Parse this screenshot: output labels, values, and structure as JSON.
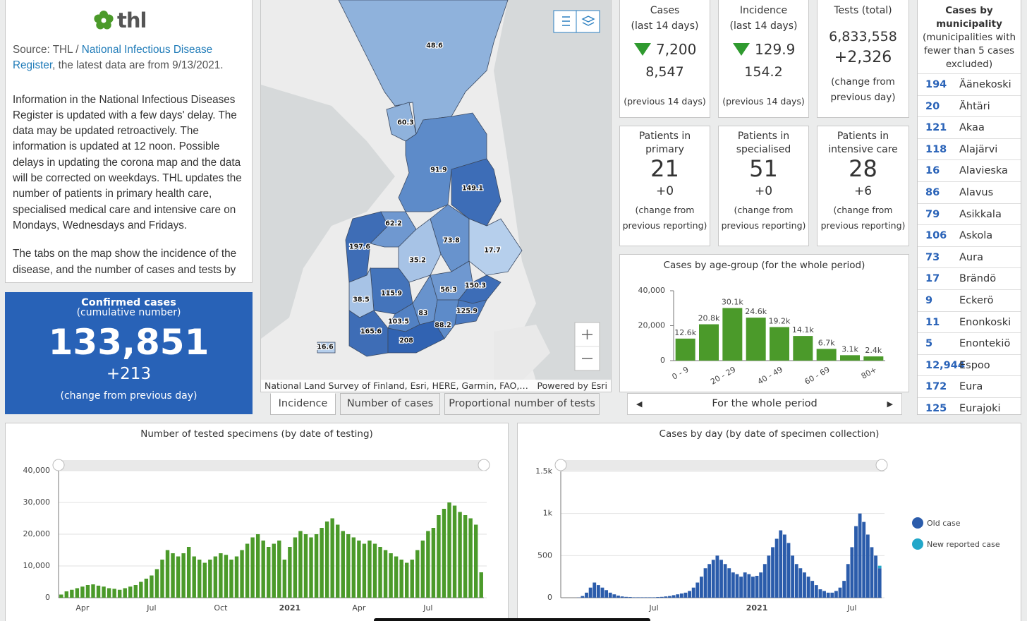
{
  "header": {
    "logo": "thl",
    "source_prefix": "Source: THL / ",
    "source_link": "National Infectious Disease Register",
    "source_suffix": ", the latest data are from 9/13/2021."
  },
  "info": [
    "Information in the National Infectious Diseases Register is updated with a few days' delay. The data may be updated retroactively. The information is updated at 12 noon. Possible delays in updating the corona map and the data will be corrected on weekdays. THL updates the number of patients in primary health care, specialised medical care and intensive care on Mondays, Wednesdays and Fridays.",
    "The tabs on the map show the incidence of the disease, and the number of cases and tests by"
  ],
  "confirmed": {
    "title": "Confirmed cases",
    "subtitle": "(cumulative number)",
    "value": "133,851",
    "change": "+213",
    "note": "(change from previous day)"
  },
  "map": {
    "regions": [
      "48.6",
      "60.3",
      "91.9",
      "149.1",
      "62.2",
      "197.6",
      "73.8",
      "17.7",
      "35.2",
      "150.3",
      "56.3",
      "115.9",
      "38.5",
      "125.9",
      "83",
      "103.5",
      "88.2",
      "165.6",
      "208",
      "16.6"
    ],
    "attribution": "National Land Survey of Finland, Esri, HERE, Garmin, FAO,…",
    "powered": "Powered by Esri",
    "tabs": [
      "Incidence",
      "Number of cases",
      "Proportional number of tests"
    ]
  },
  "kpis": [
    {
      "title": "Cases",
      "subtitle": "(last 14 days)",
      "value": "7,200",
      "previous": "8,547",
      "note": "(previous 14 days)"
    },
    {
      "title": "Incidence",
      "subtitle": "(last 14 days)",
      "value": "129.9",
      "previous": "154.2",
      "note": "(previous 14 days)"
    },
    {
      "title": "Tests (total)",
      "value": "6,833,558",
      "change": "+2,326",
      "note": "(change from previous day)"
    },
    {
      "title": "Patients in primary health care",
      "value": "21",
      "change": "+0",
      "note": "(change from previous reporting)"
    },
    {
      "title": "Patients in specialised medical care",
      "value": "51",
      "change": "+0",
      "note": "(change from previous reporting)"
    },
    {
      "title": "Patients in intensive care",
      "value": "28",
      "change": "+6",
      "note": "(change from previous reporting)"
    }
  ],
  "pager": "For the whole period",
  "municipalities": {
    "title": "Cases by municipality",
    "subtitle": "(municipalities with fewer than 5 cases excluded)",
    "rows": [
      [
        "194",
        "Äänekoski"
      ],
      [
        "20",
        "Ähtäri"
      ],
      [
        "121",
        "Akaa"
      ],
      [
        "118",
        "Alajärvi"
      ],
      [
        "16",
        "Alavieska"
      ],
      [
        "86",
        "Alavus"
      ],
      [
        "79",
        "Asikkala"
      ],
      [
        "106",
        "Askola"
      ],
      [
        "73",
        "Aura"
      ],
      [
        "17",
        "Brändö"
      ],
      [
        "9",
        "Eckerö"
      ],
      [
        "11",
        "Enonkoski"
      ],
      [
        "5",
        "Enontekiö"
      ],
      [
        "12,944",
        "Espoo"
      ],
      [
        "172",
        "Eura"
      ],
      [
        "125",
        "Eurajoki"
      ]
    ]
  },
  "chart_data": [
    {
      "type": "bar",
      "title": "Cases by age-group (for the whole period)",
      "categories": [
        "0 - 9",
        null,
        "20 - 29",
        null,
        "40 - 49",
        null,
        "60 - 69",
        null,
        "80+"
      ],
      "values": [
        12600,
        20800,
        30100,
        24600,
        19200,
        14100,
        6700,
        3100,
        2400
      ],
      "value_labels": [
        "12.6k",
        "20.8k",
        "30.1k",
        "24.6k",
        "19.2k",
        "14.1k",
        "6.7k",
        "3.1k",
        "2.4k"
      ],
      "color": "#4b9a2a",
      "ylim": [
        0,
        40000
      ],
      "yticks": [
        0,
        {
          "value": 20000,
          "label": "20,000"
        },
        {
          "value": 40000,
          "label": "40,000"
        }
      ],
      "grid": false
    },
    {
      "type": "bar",
      "title": "Number of tested specimens (by date of testing)",
      "categories": [
        null,
        null,
        null,
        null,
        "Apr",
        null,
        null,
        null,
        null,
        null,
        null,
        null,
        null,
        null,
        null,
        null,
        null,
        "Jul",
        null,
        null,
        null,
        null,
        null,
        null,
        null,
        null,
        null,
        null,
        null,
        null,
        "Oct",
        null,
        null,
        null,
        null,
        null,
        null,
        null,
        null,
        null,
        null,
        null,
        null,
        "2021",
        null,
        null,
        null,
        null,
        null,
        null,
        null,
        null,
        null,
        null,
        null,
        null,
        "Apr",
        null,
        null,
        null,
        null,
        null,
        null,
        null,
        null,
        null,
        null,
        null,
        null,
        "Jul",
        null,
        null,
        null,
        null,
        null,
        null,
        null,
        null,
        null,
        null
      ],
      "values": [
        1000,
        2000,
        2500,
        3000,
        3500,
        4000,
        4200,
        3800,
        3500,
        3000,
        2800,
        2500,
        3000,
        3500,
        4000,
        5000,
        6000,
        7000,
        9000,
        12000,
        15000,
        14000,
        13000,
        14000,
        16000,
        13000,
        12000,
        11000,
        12000,
        13000,
        14000,
        13500,
        12000,
        13000,
        15000,
        17000,
        19000,
        20000,
        18000,
        16000,
        17000,
        18000,
        12000,
        16000,
        19000,
        21000,
        20000,
        19000,
        20000,
        22000,
        24000,
        25000,
        23000,
        21000,
        20000,
        19000,
        18000,
        17000,
        18000,
        17000,
        16000,
        15000,
        14000,
        13000,
        12000,
        11000,
        12000,
        15000,
        18000,
        21000,
        22000,
        26000,
        28000,
        30000,
        29000,
        27000,
        26000,
        25000,
        23000,
        8000
      ],
      "color": "#4b9a2a",
      "ylim": [
        0,
        40000
      ],
      "yticks": [
        0,
        {
          "value": 10000,
          "label": "10,000"
        },
        {
          "value": 20000,
          "label": "20,000"
        },
        {
          "value": 30000,
          "label": "30,000"
        },
        {
          "value": 40000,
          "label": "40,000"
        }
      ],
      "grid": true
    },
    {
      "type": "bar",
      "title": "Cases by day (by date of specimen collection)",
      "stacked": true,
      "categories": [
        null,
        null,
        null,
        null,
        null,
        null,
        null,
        null,
        null,
        null,
        null,
        null,
        null,
        null,
        null,
        null,
        null,
        null,
        null,
        null,
        null,
        null,
        null,
        "Jul",
        null,
        null,
        null,
        null,
        null,
        null,
        null,
        null,
        null,
        null,
        null,
        null,
        null,
        null,
        null,
        null,
        null,
        null,
        null,
        null,
        null,
        null,
        null,
        null,
        null,
        "2021",
        null,
        null,
        null,
        null,
        null,
        null,
        null,
        null,
        null,
        null,
        null,
        null,
        null,
        null,
        null,
        null,
        null,
        null,
        null,
        null,
        null,
        null,
        null,
        "Jul",
        null,
        null,
        null,
        null,
        null,
        null,
        null
      ],
      "series": [
        {
          "name": "Old case",
          "color": "#2b5cab",
          "values": [
            0,
            0,
            0,
            0,
            2,
            20,
            60,
            120,
            180,
            150,
            120,
            90,
            60,
            40,
            25,
            15,
            10,
            8,
            5,
            5,
            5,
            5,
            5,
            5,
            8,
            10,
            15,
            20,
            30,
            40,
            50,
            60,
            80,
            120,
            180,
            250,
            350,
            400,
            450,
            500,
            450,
            400,
            350,
            300,
            280,
            250,
            300,
            280,
            250,
            260,
            300,
            400,
            500,
            600,
            700,
            800,
            750,
            650,
            500,
            400,
            350,
            300,
            250,
            200,
            150,
            100,
            80,
            60,
            60,
            80,
            120,
            200,
            400,
            600,
            850,
            1000,
            900,
            750,
            600,
            500,
            350
          ]
        },
        {
          "name": "New reported case",
          "color": "#22a7c9",
          "values": [
            0,
            0,
            0,
            0,
            0,
            0,
            0,
            0,
            0,
            0,
            0,
            0,
            0,
            0,
            0,
            0,
            0,
            0,
            0,
            0,
            0,
            0,
            0,
            0,
            0,
            0,
            0,
            0,
            0,
            0,
            0,
            0,
            0,
            0,
            0,
            0,
            0,
            0,
            0,
            0,
            0,
            0,
            0,
            0,
            0,
            0,
            0,
            0,
            0,
            0,
            0,
            0,
            0,
            0,
            0,
            0,
            0,
            0,
            0,
            0,
            0,
            0,
            0,
            0,
            0,
            0,
            0,
            0,
            0,
            0,
            0,
            0,
            0,
            0,
            0,
            0,
            0,
            0,
            0,
            0,
            30
          ]
        }
      ],
      "ylim": [
        0,
        1500
      ],
      "yticks": [
        0,
        500,
        {
          "value": 1000,
          "label": "1k"
        },
        {
          "value": 1500,
          "label": "1.5k"
        }
      ],
      "grid": true
    }
  ]
}
